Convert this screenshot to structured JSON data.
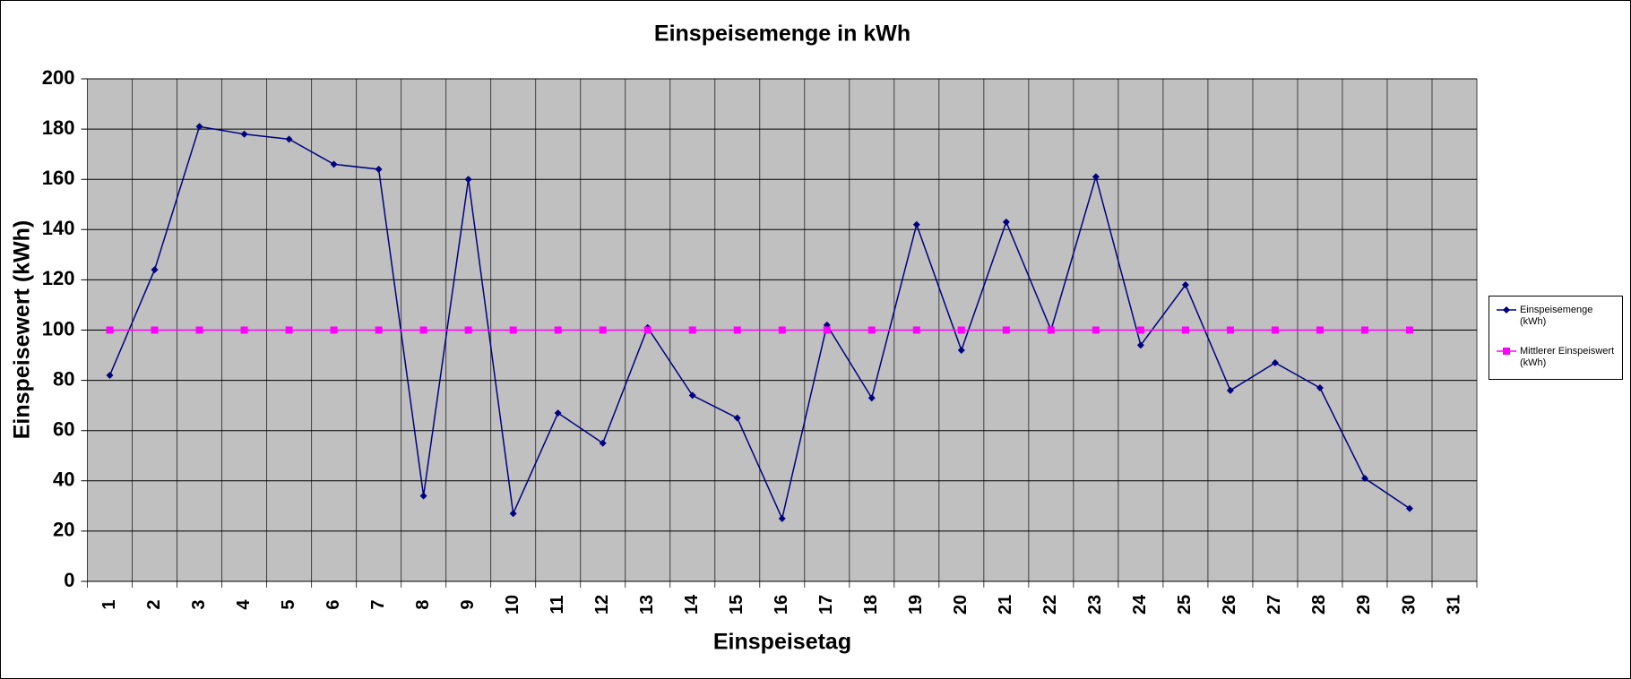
{
  "chart_data": {
    "type": "line",
    "title": "Einspeisemenge in kWh",
    "x_label": "Einspeisetag",
    "y_label": "Einspeisewert  (kWh)",
    "categories": [
      "1",
      "2",
      "3",
      "4",
      "5",
      "6",
      "7",
      "8",
      "9",
      "10",
      "11",
      "12",
      "13",
      "14",
      "15",
      "16",
      "17",
      "18",
      "19",
      "20",
      "21",
      "22",
      "23",
      "24",
      "25",
      "26",
      "27",
      "28",
      "29",
      "30",
      "31"
    ],
    "series": [
      {
        "name": "Einspeisemenge (kWh)",
        "color": "#000080",
        "marker": "diamond",
        "values": [
          82,
          124,
          181,
          178,
          176,
          166,
          164,
          34,
          160,
          27,
          67,
          55,
          101,
          74,
          65,
          25,
          102,
          73,
          142,
          92,
          143,
          100,
          161,
          94,
          118,
          76,
          87,
          77,
          41,
          29,
          null
        ]
      },
      {
        "name": "Mittlerer Einspeiswert (kWh)",
        "color": "#ff00ff",
        "marker": "square",
        "values": [
          100,
          100,
          100,
          100,
          100,
          100,
          100,
          100,
          100,
          100,
          100,
          100,
          100,
          100,
          100,
          100,
          100,
          100,
          100,
          100,
          100,
          100,
          100,
          100,
          100,
          100,
          100,
          100,
          100,
          100,
          null
        ]
      }
    ],
    "ylim": [
      0,
      200
    ],
    "yticks": [
      0,
      20,
      40,
      60,
      80,
      100,
      120,
      140,
      160,
      180,
      200
    ],
    "grid": true,
    "legend": "right"
  }
}
